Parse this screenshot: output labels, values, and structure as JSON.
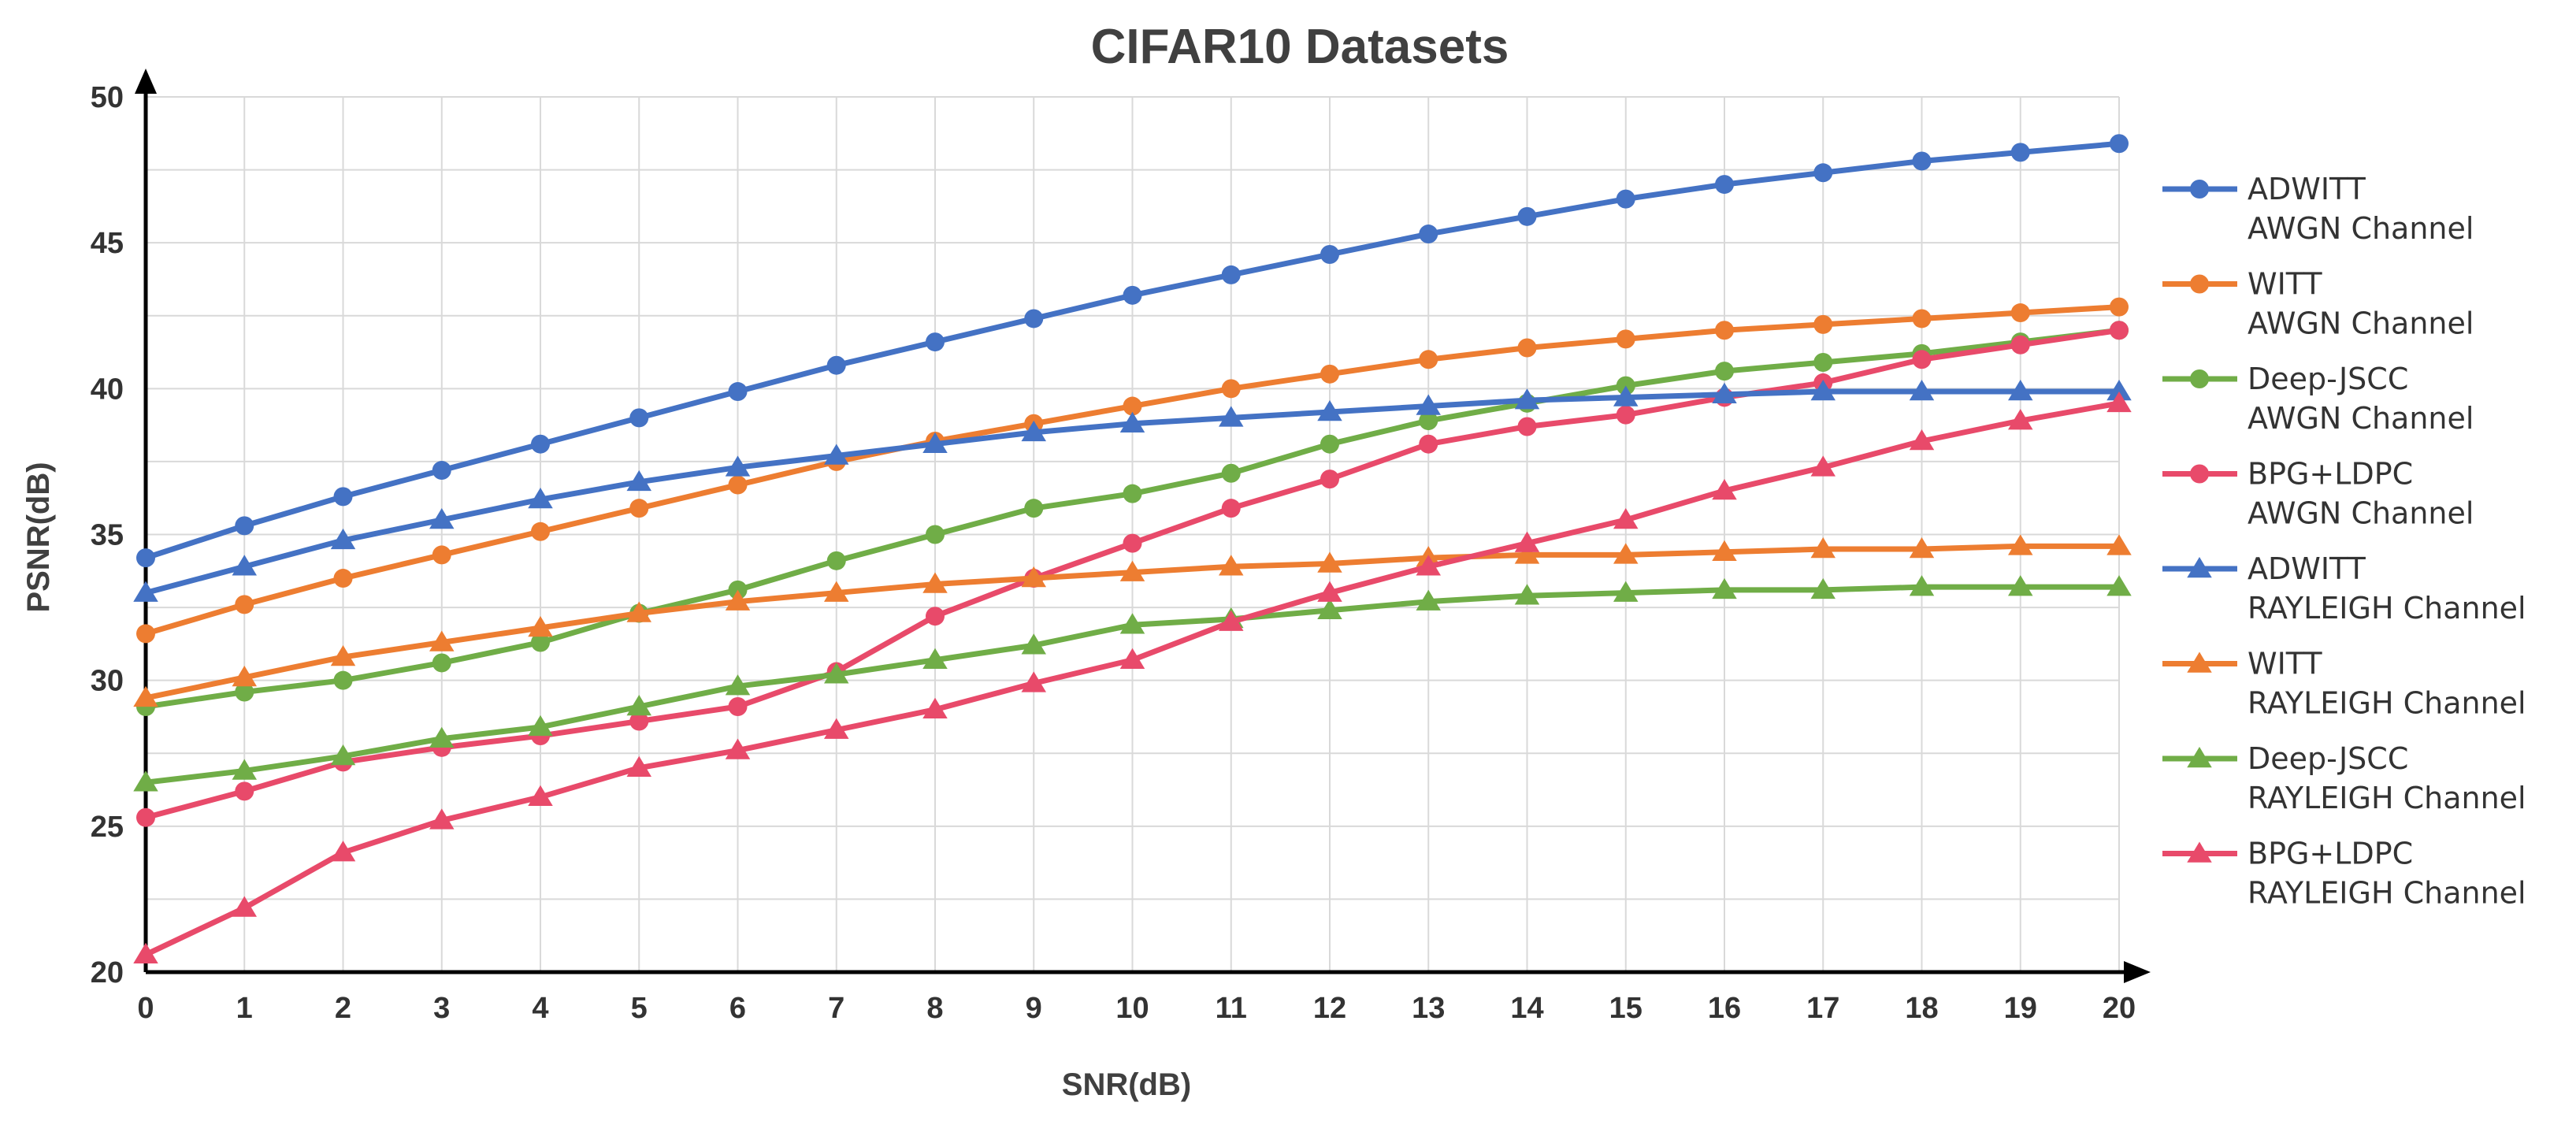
{
  "chart_data": {
    "type": "line",
    "title": "CIFAR10 Datasets",
    "xlabel": "SNR(dB)",
    "ylabel": "PSNR(dB)",
    "xlim": [
      0,
      20
    ],
    "ylim": [
      20,
      50
    ],
    "x_ticks": [
      "0",
      "1",
      "2",
      "3",
      "4",
      "5",
      "6",
      "7",
      "8",
      "9",
      "10",
      "11",
      "12",
      "13",
      "14",
      "15",
      "16",
      "17",
      "18",
      "19",
      "20"
    ],
    "y_ticks": [
      "20",
      "25",
      "30",
      "35",
      "40",
      "45",
      "50"
    ],
    "grid": true,
    "legend_position": "right",
    "x": [
      0,
      1,
      2,
      3,
      4,
      5,
      6,
      7,
      8,
      9,
      10,
      11,
      12,
      13,
      14,
      15,
      16,
      17,
      18,
      19,
      20
    ],
    "series": [
      {
        "name": "ADWITT",
        "channel": "AWGN Channel",
        "color": "#4472C4",
        "marker": "circle",
        "values": [
          34.2,
          35.3,
          36.3,
          37.2,
          38.1,
          39.0,
          39.9,
          40.8,
          41.6,
          42.4,
          43.2,
          43.9,
          44.6,
          45.3,
          45.9,
          46.5,
          47.0,
          47.4,
          47.8,
          48.1,
          48.4
        ]
      },
      {
        "name": "WITT",
        "channel": "AWGN Channel",
        "color": "#ED7D31",
        "marker": "circle",
        "values": [
          31.6,
          32.6,
          33.5,
          34.3,
          35.1,
          35.9,
          36.7,
          37.5,
          38.2,
          38.8,
          39.4,
          40.0,
          40.5,
          41.0,
          41.4,
          41.7,
          42.0,
          42.2,
          42.4,
          42.6,
          42.8
        ]
      },
      {
        "name": "Deep-JSCC",
        "channel": "AWGN Channel",
        "color": "#70AD47",
        "marker": "circle",
        "values": [
          29.1,
          29.6,
          30.0,
          30.6,
          31.3,
          32.3,
          33.1,
          34.1,
          35.0,
          35.9,
          36.4,
          37.1,
          38.1,
          38.9,
          39.5,
          40.1,
          40.6,
          40.9,
          41.2,
          41.6,
          42.0
        ]
      },
      {
        "name": "BPG+LDPC",
        "channel": "AWGN Channel",
        "color": "#E84A6A",
        "marker": "circle",
        "values": [
          25.3,
          26.2,
          27.2,
          27.7,
          28.1,
          28.6,
          29.1,
          30.3,
          32.2,
          33.5,
          34.7,
          35.9,
          36.9,
          38.1,
          38.7,
          39.1,
          39.7,
          40.2,
          41.0,
          41.5,
          42.0
        ]
      },
      {
        "name": "ADWITT",
        "channel": "RAYLEIGH Channel",
        "color": "#4472C4",
        "marker": "triangle",
        "values": [
          33.0,
          33.9,
          34.8,
          35.5,
          36.2,
          36.8,
          37.3,
          37.7,
          38.1,
          38.5,
          38.8,
          39.0,
          39.2,
          39.4,
          39.6,
          39.7,
          39.8,
          39.9,
          39.9,
          39.9,
          39.9
        ]
      },
      {
        "name": "WITT",
        "channel": "RAYLEIGH Channel",
        "color": "#ED7D31",
        "marker": "triangle",
        "values": [
          29.4,
          30.1,
          30.8,
          31.3,
          31.8,
          32.3,
          32.7,
          33.0,
          33.3,
          33.5,
          33.7,
          33.9,
          34.0,
          34.2,
          34.3,
          34.3,
          34.4,
          34.5,
          34.5,
          34.6,
          34.6
        ]
      },
      {
        "name": "Deep-JSCC",
        "channel": "RAYLEIGH Channel",
        "color": "#70AD47",
        "marker": "triangle",
        "values": [
          26.5,
          26.9,
          27.4,
          28.0,
          28.4,
          29.1,
          29.8,
          30.2,
          30.7,
          31.2,
          31.9,
          32.1,
          32.4,
          32.7,
          32.9,
          33.0,
          33.1,
          33.1,
          33.2,
          33.2,
          33.2
        ]
      },
      {
        "name": "BPG+LDPC",
        "channel": "RAYLEIGH Channel",
        "color": "#E84A6A",
        "marker": "triangle",
        "values": [
          20.6,
          22.2,
          24.1,
          25.2,
          26.0,
          27.0,
          27.6,
          28.3,
          29.0,
          29.9,
          30.7,
          32.0,
          33.0,
          33.9,
          34.7,
          35.5,
          36.5,
          37.3,
          38.2,
          38.9,
          39.5
        ]
      }
    ]
  }
}
